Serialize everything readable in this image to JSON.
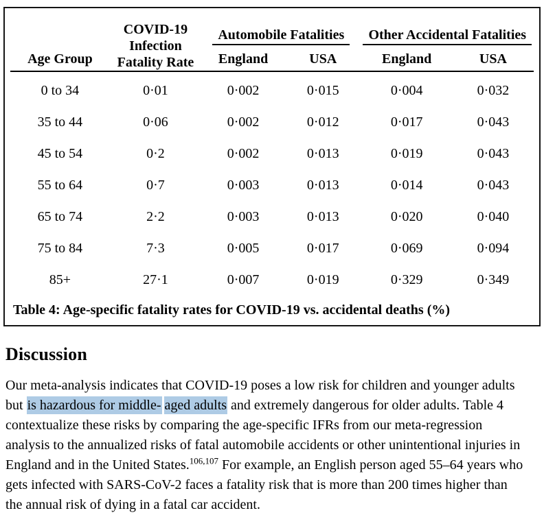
{
  "colors": {
    "highlight": "#aecbe5",
    "border": "#141414",
    "text": "#000000"
  },
  "table": {
    "caption": "Table 4: Age-specific fatality rates for COVID-19 vs. accidental deaths (%)",
    "headers": {
      "age_group": "Age Group",
      "ifr": "COVID-19\nInfection\nFatality Rate",
      "auto_group": "Automobile Fatalities",
      "other_group": "Other Accidental Fatalities",
      "auto_england": "England",
      "auto_usa": "USA",
      "other_england": "England",
      "other_usa": "USA"
    },
    "rows": [
      {
        "age": "0 to 34",
        "ifr": "0·01",
        "auto_england": "0·002",
        "auto_usa": "0·015",
        "other_england": "0·004",
        "other_usa": "0·032"
      },
      {
        "age": "35 to 44",
        "ifr": "0·06",
        "auto_england": "0·002",
        "auto_usa": "0·012",
        "other_england": "0·017",
        "other_usa": "0·043"
      },
      {
        "age": "45 to 54",
        "ifr": "0·2",
        "auto_england": "0·002",
        "auto_usa": "0·013",
        "other_england": "0·019",
        "other_usa": "0·043"
      },
      {
        "age": "55 to 64",
        "ifr": "0·7",
        "auto_england": "0·003",
        "auto_usa": "0·013",
        "other_england": "0·014",
        "other_usa": "0·043"
      },
      {
        "age": "65 to 74",
        "ifr": "2·2",
        "auto_england": "0·003",
        "auto_usa": "0·013",
        "other_england": "0·020",
        "other_usa": "0·040"
      },
      {
        "age": "75 to 84",
        "ifr": "7·3",
        "auto_england": "0·005",
        "auto_usa": "0·017",
        "other_england": "0·069",
        "other_usa": "0·094"
      },
      {
        "age": "85+",
        "ifr": "27·1",
        "auto_england": "0·007",
        "auto_usa": "0·019",
        "other_england": "0·329",
        "other_usa": "0·349"
      }
    ]
  },
  "discussion": {
    "heading": "Discussion",
    "para": {
      "seg1": "Our meta-analysis indicates that COVID-19 poses a low risk for children and younger adults but ",
      "highlight1": "is hazardous for middle-",
      "highlight2": "aged adults",
      "seg2": " and extremely dangerous for older adults. Table 4 contextualize these risks by comparing the age-specific IFRs from our meta-regression analysis to the annualized risks of fatal automobile accidents or other unintentional injuries in England and in the United States.",
      "refs": "106,107",
      "seg3": " For example, an English person aged 55–64 years who gets infected with SARS-CoV-2 faces a fatality risk that is more than 200 times higher than the annual risk of dying in a fatal car accident."
    }
  }
}
